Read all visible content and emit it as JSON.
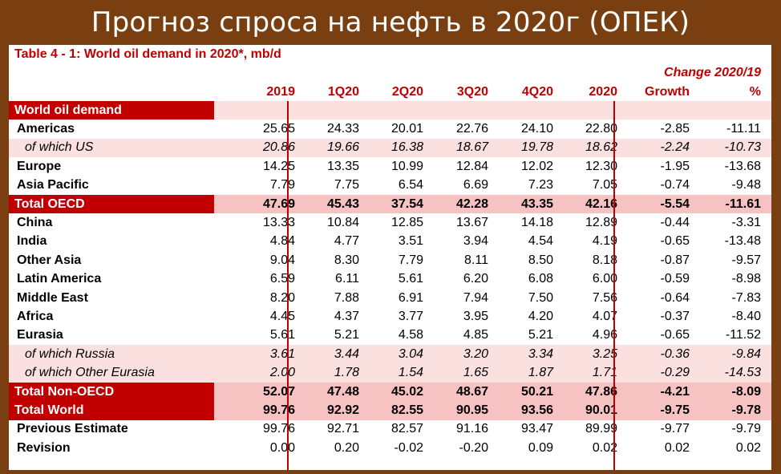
{
  "slide_title": "Прогноз спроса на нефть в 2020г (ОПЕК)",
  "table_title": "Table 4 - 1: World oil demand in 2020*, mb/d",
  "change_label": "Change 2020/19",
  "columns": [
    "2019",
    "1Q20",
    "2Q20",
    "3Q20",
    "4Q20",
    "2020",
    "Growth",
    "%"
  ],
  "section_label": "World oil demand",
  "rows": [
    {
      "label": "Americas",
      "values": [
        "25.65",
        "24.33",
        "20.01",
        "22.76",
        "24.10",
        "22.80",
        "-2.85",
        "-11.11"
      ],
      "style": "plain"
    },
    {
      "label": "of which US",
      "values": [
        "20.86",
        "19.66",
        "16.38",
        "18.67",
        "19.78",
        "18.62",
        "-2.24",
        "-10.73"
      ],
      "style": "italic"
    },
    {
      "label": "Europe",
      "values": [
        "14.25",
        "13.35",
        "10.99",
        "12.84",
        "12.02",
        "12.30",
        "-1.95",
        "-13.68"
      ],
      "style": "plain"
    },
    {
      "label": "Asia Pacific",
      "values": [
        "7.79",
        "7.75",
        "6.54",
        "6.69",
        "7.23",
        "7.05",
        "-0.74",
        "-9.48"
      ],
      "style": "plain"
    },
    {
      "label": "Total OECD",
      "values": [
        "47.69",
        "45.43",
        "37.54",
        "42.28",
        "43.35",
        "42.16",
        "-5.54",
        "-11.61"
      ],
      "style": "total"
    },
    {
      "label": "China",
      "values": [
        "13.33",
        "10.84",
        "12.85",
        "13.67",
        "14.18",
        "12.89",
        "-0.44",
        "-3.31"
      ],
      "style": "plain"
    },
    {
      "label": "India",
      "values": [
        "4.84",
        "4.77",
        "3.51",
        "3.94",
        "4.54",
        "4.19",
        "-0.65",
        "-13.48"
      ],
      "style": "plain"
    },
    {
      "label": "Other Asia",
      "values": [
        "9.04",
        "8.30",
        "7.79",
        "8.11",
        "8.50",
        "8.18",
        "-0.87",
        "-9.57"
      ],
      "style": "plain"
    },
    {
      "label": "Latin America",
      "values": [
        "6.59",
        "6.11",
        "5.61",
        "6.20",
        "6.08",
        "6.00",
        "-0.59",
        "-8.98"
      ],
      "style": "plain"
    },
    {
      "label": "Middle East",
      "values": [
        "8.20",
        "7.88",
        "6.91",
        "7.94",
        "7.50",
        "7.56",
        "-0.64",
        "-7.83"
      ],
      "style": "plain"
    },
    {
      "label": "Africa",
      "values": [
        "4.45",
        "4.37",
        "3.77",
        "3.95",
        "4.20",
        "4.07",
        "-0.37",
        "-8.40"
      ],
      "style": "plain"
    },
    {
      "label": "Eurasia",
      "values": [
        "5.61",
        "5.21",
        "4.58",
        "4.85",
        "5.21",
        "4.96",
        "-0.65",
        "-11.52"
      ],
      "style": "plain"
    },
    {
      "label": "of which Russia",
      "values": [
        "3.61",
        "3.44",
        "3.04",
        "3.20",
        "3.34",
        "3.25",
        "-0.36",
        "-9.84"
      ],
      "style": "italic"
    },
    {
      "label": "of which Other Eurasia",
      "values": [
        "2.00",
        "1.78",
        "1.54",
        "1.65",
        "1.87",
        "1.71",
        "-0.29",
        "-14.53"
      ],
      "style": "italic"
    },
    {
      "label": "Total Non-OECD",
      "values": [
        "52.07",
        "47.48",
        "45.02",
        "48.67",
        "50.21",
        "47.86",
        "-4.21",
        "-8.09"
      ],
      "style": "total"
    },
    {
      "label": "Total World",
      "values": [
        "99.76",
        "92.92",
        "82.55",
        "90.95",
        "93.56",
        "90.01",
        "-9.75",
        "-9.78"
      ],
      "style": "total"
    },
    {
      "label": "Previous Estimate",
      "values": [
        "99.76",
        "92.71",
        "82.57",
        "91.16",
        "93.47",
        "89.99",
        "-9.77",
        "-9.79"
      ],
      "style": "plain"
    },
    {
      "label": "Revision",
      "values": [
        "0.00",
        "0.20",
        "-0.02",
        "-0.20",
        "0.09",
        "0.02",
        "0.02",
        "0.02"
      ],
      "style": "plain"
    }
  ],
  "colors": {
    "background": "#7a3f10",
    "accent_red": "#c00000",
    "total_row_fill": "#f7c2c2",
    "shaded_row_fill": "#fbe0e0"
  }
}
